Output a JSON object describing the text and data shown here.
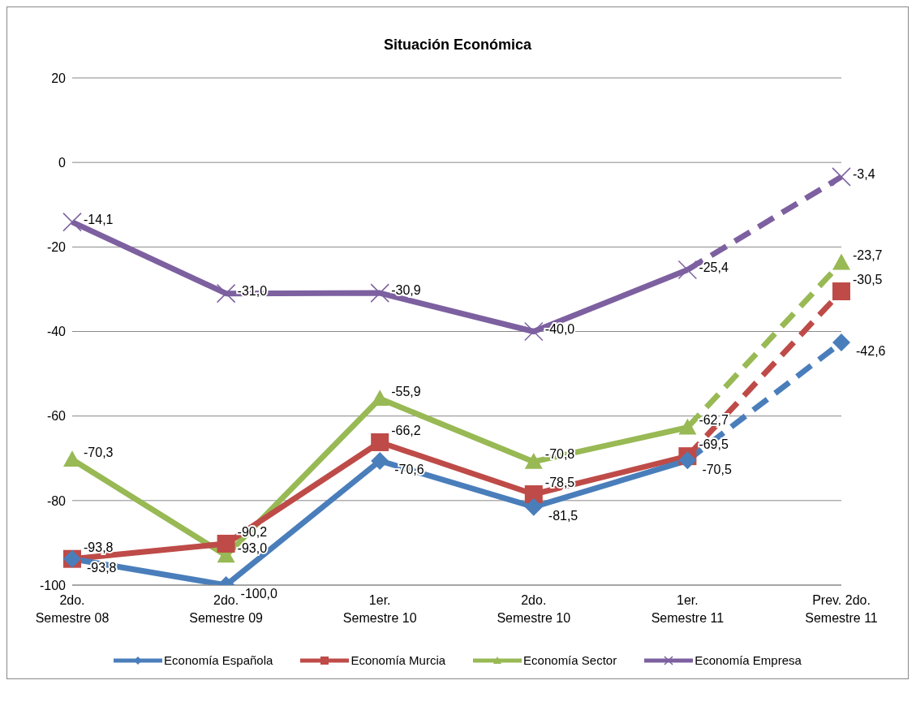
{
  "chart_data": {
    "type": "line",
    "title": "Situación Económica",
    "categories": [
      "2do. Semestre 08",
      "2do. Semestre 09",
      "1er. Semestre 10",
      "2do. Semestre 10",
      "1er. Semestre 11",
      "Prev. 2do. Semestre 11"
    ],
    "ylim": [
      -100,
      20
    ],
    "yticks": [
      -100,
      -80,
      -60,
      -40,
      -20,
      0,
      20
    ],
    "grid": "y",
    "legend": "bottom",
    "series": [
      {
        "name": "Economía Española",
        "color": "#4a7ebb",
        "marker": "diamond",
        "line_style": "solid",
        "values": [
          -93.8,
          -100.0,
          -70.6,
          -81.5,
          -70.5,
          null
        ],
        "value_labels": [
          "-93,8",
          "-100,0",
          "-70,6",
          "-81,5",
          "-70,5",
          null
        ]
      },
      {
        "name": "Economía Murcia",
        "color": "#be4b48",
        "marker": "square",
        "line_style": "solid",
        "values": [
          -93.8,
          -90.2,
          -66.2,
          -78.5,
          -69.5,
          null
        ],
        "value_labels": [
          "-93,8",
          "-90,2",
          "-66,2",
          "-78,5",
          "-69,5",
          null
        ]
      },
      {
        "name": "Economía Sector",
        "color": "#98b954",
        "marker": "triangle",
        "line_style": "solid",
        "values": [
          -70.3,
          -93.0,
          -55.9,
          -70.8,
          -62.7,
          null
        ],
        "value_labels": [
          "-70,3",
          "-93,0",
          "-55,9",
          "-70,8",
          "-62,7",
          null
        ]
      },
      {
        "name": "Economía Empresa",
        "color": "#7d60a0",
        "marker": "cross",
        "line_style": "solid",
        "values": [
          -14.1,
          -31.0,
          -30.9,
          -40.0,
          -25.4,
          null
        ],
        "value_labels": [
          "-14,1",
          "-31,0",
          "-30,9",
          "-40,0",
          "-25,4",
          null
        ]
      },
      {
        "color": "#4a7ebb",
        "marker": "diamond",
        "line_style": "dashed",
        "values": [
          null,
          null,
          null,
          null,
          -70.5,
          -42.6
        ],
        "value_labels": [
          null,
          null,
          null,
          null,
          null,
          "-42,6"
        ]
      },
      {
        "color": "#be4b48",
        "marker": "square",
        "line_style": "dashed",
        "values": [
          null,
          null,
          null,
          null,
          -69.5,
          -30.5
        ],
        "value_labels": [
          null,
          null,
          null,
          null,
          null,
          "-30,5"
        ]
      },
      {
        "color": "#98b954",
        "marker": "triangle",
        "line_style": "dashed",
        "values": [
          null,
          null,
          null,
          null,
          -62.7,
          -23.7
        ],
        "value_labels": [
          null,
          null,
          null,
          null,
          null,
          "-23,7"
        ]
      },
      {
        "color": "#7d60a0",
        "marker": "cross",
        "line_style": "dashed",
        "values": [
          null,
          null,
          null,
          null,
          -25.4,
          -3.4
        ],
        "value_labels": [
          null,
          null,
          null,
          null,
          null,
          "-3,4"
        ]
      }
    ]
  }
}
